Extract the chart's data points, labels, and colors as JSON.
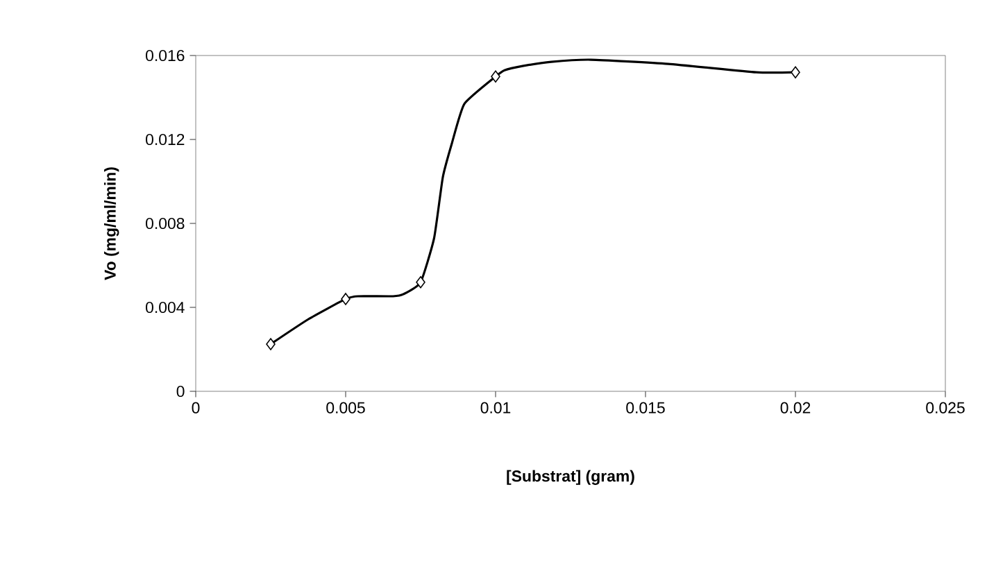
{
  "chart_data": {
    "type": "line",
    "xlabel": "[Substrat] (gram)",
    "ylabel": "Vo (mg/ml/min)",
    "xlim": [
      0,
      0.025
    ],
    "xticks": [
      0,
      0.005,
      0.01,
      0.015,
      0.02,
      0.025
    ],
    "ylim": [
      0,
      0.016
    ],
    "yticks": [
      0,
      0.004,
      0.008,
      0.012,
      0.016
    ],
    "series": [
      {
        "color": "#000000",
        "line_style": "solid",
        "marker": "none",
        "x": [
          0.0025,
          0.00375,
          0.005,
          0.0054,
          0.00658,
          0.00693,
          0.0075,
          0.00795,
          0.00824,
          0.00854,
          0.00896,
          0.01,
          0.0103,
          0.0109,
          0.01186,
          0.01318,
          0.01576,
          0.01869,
          0.02
        ],
        "values": [
          0.00225,
          0.00343,
          0.0044,
          0.00453,
          0.00453,
          0.00463,
          0.0052,
          0.0073,
          0.0102,
          0.0118,
          0.0137,
          0.015,
          0.0153,
          0.0155,
          0.0157,
          0.0158,
          0.0156,
          0.0152,
          0.0152
        ]
      },
      {
        "type": "scatter",
        "color": "#000000",
        "marker": "diamond",
        "x": [
          0.0025,
          0.005,
          0.0075,
          0.01,
          0.02
        ],
        "values": [
          0.00225,
          0.0044,
          0.0052,
          0.015,
          0.0152
        ]
      }
    ]
  }
}
